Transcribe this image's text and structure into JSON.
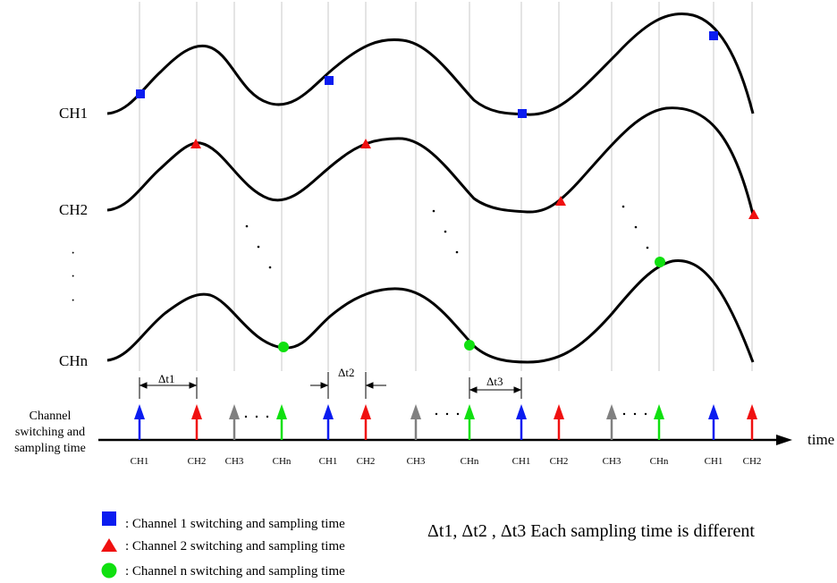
{
  "channels": [
    {
      "label": "CH1"
    },
    {
      "label": "CH2"
    },
    {
      "label": "CHn"
    }
  ],
  "channel_ellipsis": "·",
  "timeline": {
    "title_lines": [
      "Channel",
      "switching and",
      "sampling time"
    ],
    "axis_label": "time",
    "slots": [
      {
        "label": "CH1",
        "color": "#0a1cf0"
      },
      {
        "label": "CH2",
        "color": "#f01010"
      },
      {
        "label": "CH3",
        "color": "#808080"
      },
      {
        "label": "CHn",
        "color": "#10e010"
      },
      {
        "label": "CH1",
        "color": "#0a1cf0"
      },
      {
        "label": "CH2",
        "color": "#f01010"
      },
      {
        "label": "CH3",
        "color": "#808080"
      },
      {
        "label": "CHn",
        "color": "#10e010"
      },
      {
        "label": "CH1",
        "color": "#0a1cf0"
      },
      {
        "label": "CH2",
        "color": "#f01010"
      },
      {
        "label": "CH3",
        "color": "#808080"
      },
      {
        "label": "CHn",
        "color": "#10e010"
      },
      {
        "label": "CH1",
        "color": "#0a1cf0"
      },
      {
        "label": "CH2",
        "color": "#f01010"
      }
    ],
    "intervals": [
      {
        "label": "Δt1"
      },
      {
        "label": "Δt2"
      },
      {
        "label": "Δt3"
      }
    ]
  },
  "legend": [
    {
      "label": ": Channel 1 switching and sampling time",
      "marker": "square",
      "color": "#0a1cf0"
    },
    {
      "label": ": Channel 2 switching and sampling time",
      "marker": "triangle",
      "color": "#f01010"
    },
    {
      "label": ": Channel n switching and sampling time",
      "marker": "circle",
      "color": "#10e010"
    }
  ],
  "note": "Δt1, Δt2 , Δt3 Each sampling time is different"
}
